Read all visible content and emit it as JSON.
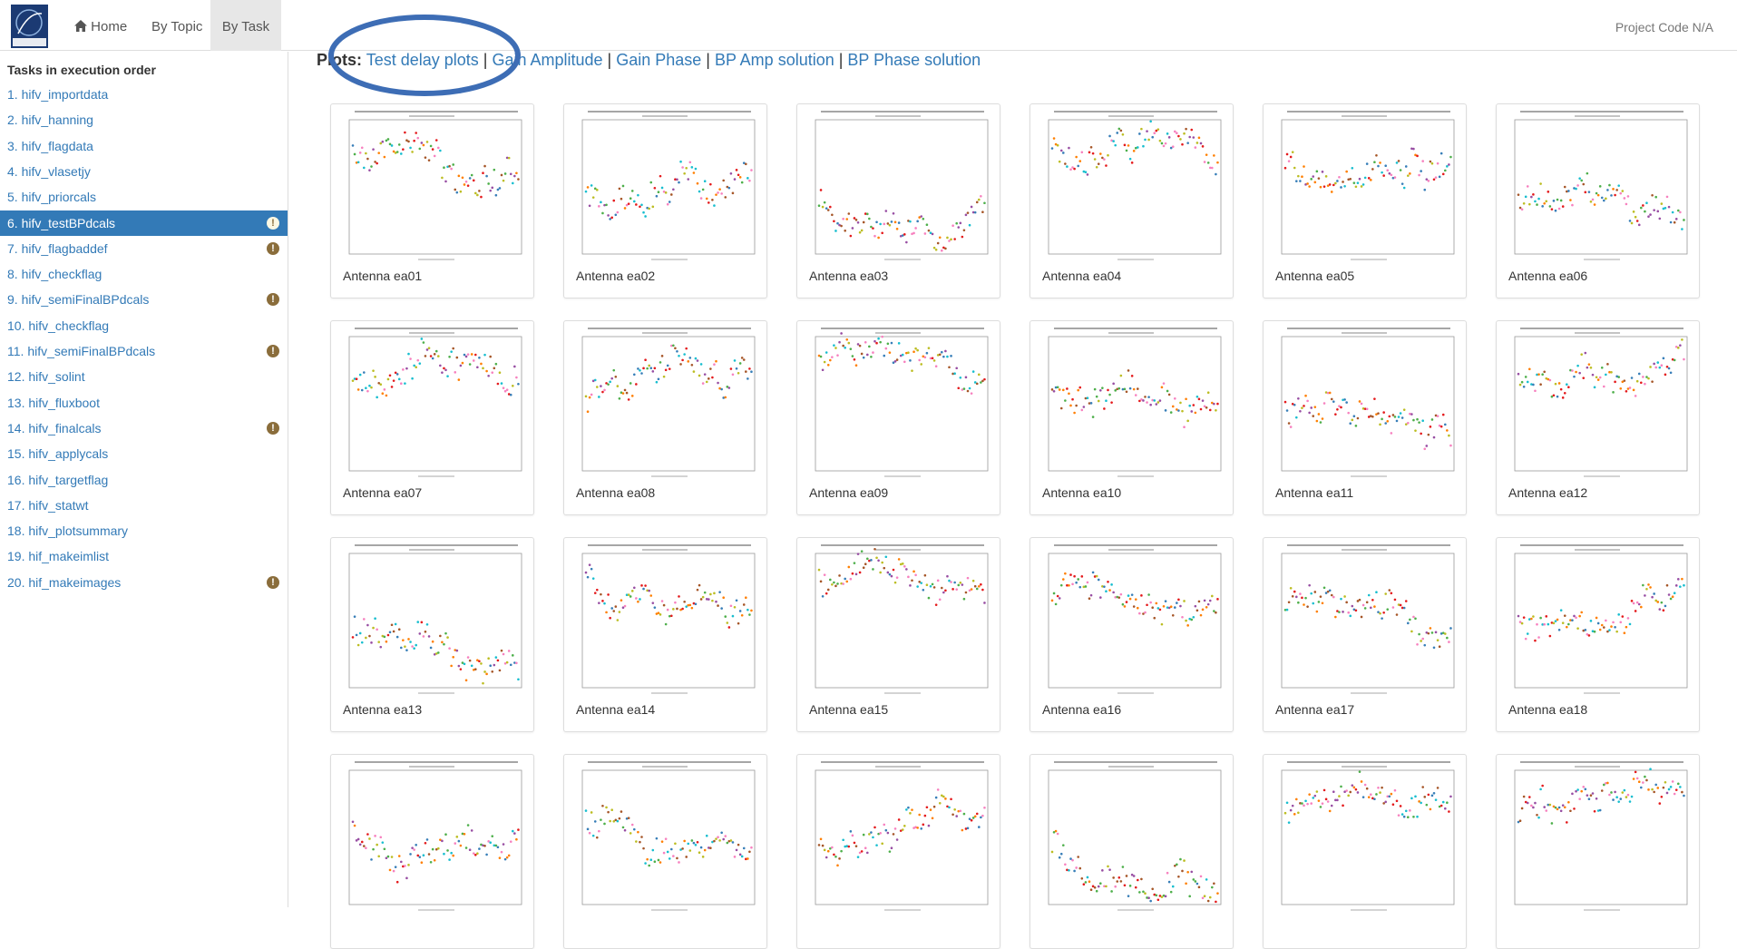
{
  "nav": {
    "home": "Home",
    "by_topic": "By Topic",
    "by_task": "By Task",
    "project_code": "Project Code N/A"
  },
  "sidebar": {
    "heading": "Tasks in execution order",
    "active": 5,
    "tasks": [
      {
        "label": "1. hifv_importdata",
        "warning": false
      },
      {
        "label": "2. hifv_hanning",
        "warning": false
      },
      {
        "label": "3. hifv_flagdata",
        "warning": false
      },
      {
        "label": "4. hifv_vlasetjy",
        "warning": false
      },
      {
        "label": "5. hifv_priorcals",
        "warning": false
      },
      {
        "label": "6. hifv_testBPdcals",
        "warning": true
      },
      {
        "label": "7. hifv_flagbaddef",
        "warning": true
      },
      {
        "label": "8. hifv_checkflag",
        "warning": false
      },
      {
        "label": "9. hifv_semiFinalBPdcals",
        "warning": true
      },
      {
        "label": "10. hifv_checkflag",
        "warning": false
      },
      {
        "label": "11. hifv_semiFinalBPdcals",
        "warning": true
      },
      {
        "label": "12. hifv_solint",
        "warning": false
      },
      {
        "label": "13. hifv_fluxboot",
        "warning": false
      },
      {
        "label": "14. hifv_finalcals",
        "warning": true
      },
      {
        "label": "15. hifv_applycals",
        "warning": false
      },
      {
        "label": "16. hifv_targetflag",
        "warning": false
      },
      {
        "label": "17. hifv_statwt",
        "warning": false
      },
      {
        "label": "18. hifv_plotsummary",
        "warning": false
      },
      {
        "label": "19. hif_makeimlist",
        "warning": false
      },
      {
        "label": "20. hif_makeimages",
        "warning": true
      }
    ]
  },
  "plots": {
    "label": "Plots:",
    "separator": "|",
    "links": [
      "Test delay plots",
      "Gain Amplitude",
      "Gain Phase",
      "BP Amp solution",
      "BP Phase solution"
    ]
  },
  "antennas": [
    "Antenna ea01",
    "Antenna ea02",
    "Antenna ea03",
    "Antenna ea04",
    "Antenna ea05",
    "Antenna ea06",
    "Antenna ea07",
    "Antenna ea08",
    "Antenna ea09",
    "Antenna ea10",
    "Antenna ea11",
    "Antenna ea12",
    "Antenna ea13",
    "Antenna ea14",
    "Antenna ea15",
    "Antenna ea16",
    "Antenna ea17",
    "Antenna ea18"
  ]
}
